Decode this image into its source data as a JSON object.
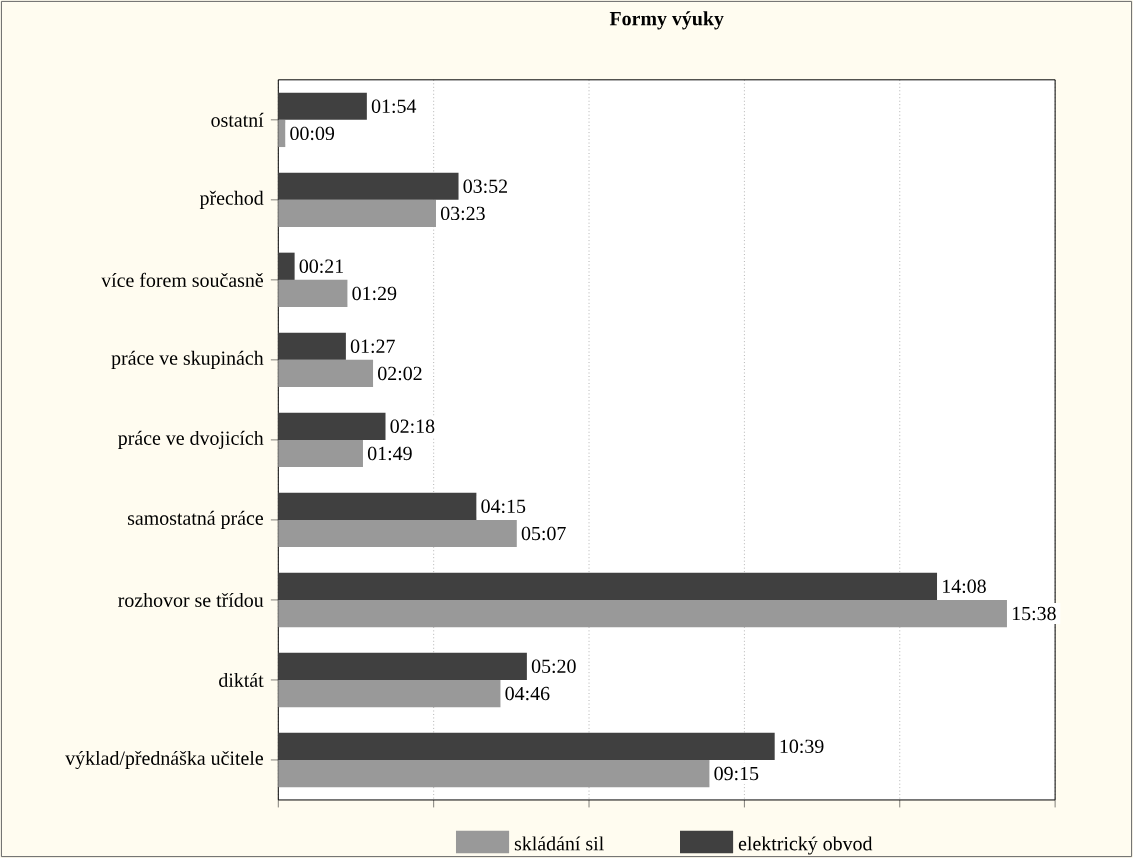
{
  "chart_data": {
    "type": "bar",
    "orientation": "horizontal",
    "title": "Formy výuky",
    "categories": [
      "ostatní",
      "přechod",
      "více forem současně",
      "práce ve skupinách",
      "práce ve dvojicích",
      "samostatná práce",
      "rozhovor se třídou",
      "diktát",
      "výklad/přednáška učitele"
    ],
    "series": [
      {
        "name": "skládání sil",
        "color": "#999999",
        "values": [
          9,
          203,
          89,
          122,
          109,
          307,
          938,
          286,
          555
        ],
        "value_labels": [
          "00:09",
          "03:23",
          "01:29",
          "02:02",
          "01:49",
          "05:07",
          "15:38",
          "04:46",
          "09:15"
        ]
      },
      {
        "name": "elektrický obvod",
        "color": "#404040",
        "values": [
          114,
          232,
          21,
          87,
          138,
          255,
          848,
          320,
          639
        ],
        "value_labels": [
          "01:54",
          "03:52",
          "00:21",
          "01:27",
          "02:18",
          "04:15",
          "14:08",
          "05:20",
          "10:39"
        ]
      }
    ],
    "xlim": [
      0,
      1000
    ],
    "xticks": [
      {
        "value": 0,
        "label": null
      },
      {
        "value": 200,
        "label": null
      },
      {
        "value": 400,
        "label": null
      },
      {
        "value": 600,
        "label": null
      },
      {
        "value": 800,
        "label": null
      },
      {
        "value": 1000,
        "label": null
      }
    ],
    "grid": "x",
    "legend": "bottom",
    "tick_labels": "y"
  }
}
